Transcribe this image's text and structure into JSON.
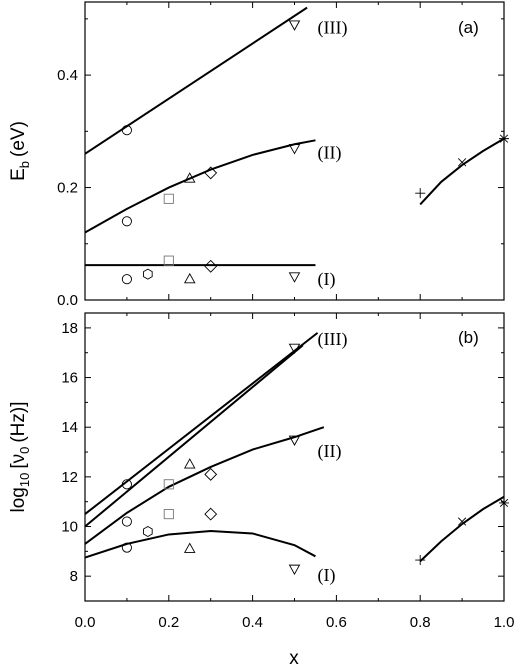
{
  "chart_data": [
    {
      "type": "scatter",
      "panel_label": "(a)",
      "ylabel_main": "E",
      "ylabel_sub": "b",
      "ylabel_unit": "(eV)",
      "xlim": [
        0.0,
        1.0
      ],
      "ylim": [
        0.0,
        0.53
      ],
      "yticks": [
        0.0,
        0.2,
        0.4
      ],
      "ytick_labels": [
        "0.0",
        "0.2",
        "0.4"
      ],
      "grid": false,
      "region_labels": [
        {
          "text": "(III)",
          "x": 0.555,
          "y": 0.485
        },
        {
          "text": "(II)",
          "x": 0.555,
          "y": 0.262
        },
        {
          "text": "(I)",
          "x": 0.555,
          "y": 0.037
        }
      ],
      "curves": [
        {
          "name": "(III)",
          "x": [
            0.0,
            0.53
          ],
          "y": [
            0.26,
            0.52
          ]
        },
        {
          "name": "(II)",
          "x": [
            0.0,
            0.1,
            0.2,
            0.3,
            0.4,
            0.5,
            0.55
          ],
          "y": [
            0.12,
            0.162,
            0.2,
            0.232,
            0.258,
            0.277,
            0.284
          ]
        },
        {
          "name": "(I)",
          "x": [
            0.0,
            0.55
          ],
          "y": [
            0.062,
            0.062
          ]
        },
        {
          "name": "x>=0.8",
          "x": [
            0.8,
            0.85,
            0.9,
            0.95,
            1.0
          ],
          "y": [
            0.17,
            0.21,
            0.24,
            0.265,
            0.287
          ]
        }
      ],
      "points": [
        {
          "marker": "circle",
          "x": 0.1,
          "y": 0.302
        },
        {
          "marker": "circle",
          "x": 0.1,
          "y": 0.14
        },
        {
          "marker": "circle",
          "x": 0.1,
          "y": 0.037
        },
        {
          "marker": "hexagon",
          "x": 0.15,
          "y": 0.046
        },
        {
          "marker": "square",
          "x": 0.2,
          "y": 0.18,
          "color": "gray"
        },
        {
          "marker": "square",
          "x": 0.2,
          "y": 0.07,
          "color": "gray"
        },
        {
          "marker": "triangle-up",
          "x": 0.25,
          "y": 0.216
        },
        {
          "marker": "triangle-up",
          "x": 0.25,
          "y": 0.037
        },
        {
          "marker": "diamond",
          "x": 0.3,
          "y": 0.226
        },
        {
          "marker": "diamond",
          "x": 0.3,
          "y": 0.06
        },
        {
          "marker": "triangle-down",
          "x": 0.5,
          "y": 0.49
        },
        {
          "marker": "triangle-down",
          "x": 0.5,
          "y": 0.27
        },
        {
          "marker": "triangle-down",
          "x": 0.5,
          "y": 0.042
        },
        {
          "marker": "plus",
          "x": 0.8,
          "y": 0.19
        },
        {
          "marker": "x",
          "x": 0.9,
          "y": 0.245
        },
        {
          "marker": "asterisk",
          "x": 1.0,
          "y": 0.287
        }
      ]
    },
    {
      "type": "scatter",
      "panel_label": "(b)",
      "ylabel_prefix": "log",
      "ylabel_prefix_sub": "10",
      "ylabel_bracket": "[ν",
      "ylabel_sub": "0",
      "ylabel_unit": "(Hz)]",
      "xlabel": "x",
      "xlim": [
        0.0,
        1.0
      ],
      "ylim": [
        7.0,
        18.6
      ],
      "xticks": [
        0.0,
        0.2,
        0.4,
        0.6,
        0.8,
        1.0
      ],
      "xtick_labels": [
        "0.0",
        "0.2",
        "0.4",
        "0.6",
        "0.8",
        "1.0"
      ],
      "yticks": [
        8,
        10,
        12,
        14,
        16,
        18
      ],
      "ytick_labels": [
        "8",
        "10",
        "12",
        "14",
        "16",
        "18"
      ],
      "grid": false,
      "region_labels": [
        {
          "text": "(III)",
          "x": 0.555,
          "y": 17.55
        },
        {
          "text": "(II)",
          "x": 0.555,
          "y": 13.05
        },
        {
          "text": "(I)",
          "x": 0.555,
          "y": 8.05
        }
      ],
      "curves": [
        {
          "name": "(III) upper",
          "x": [
            0.0,
            0.555
          ],
          "y": [
            10.5,
            17.8
          ]
        },
        {
          "name": "(III) lower",
          "x": [
            0.0,
            0.52
          ],
          "y": [
            10.0,
            17.3
          ]
        },
        {
          "name": "(II)",
          "x": [
            0.0,
            0.1,
            0.2,
            0.3,
            0.4,
            0.5,
            0.57
          ],
          "y": [
            9.3,
            10.55,
            11.6,
            12.4,
            13.1,
            13.6,
            14.0
          ]
        },
        {
          "name": "(I)",
          "x": [
            0.0,
            0.1,
            0.2,
            0.3,
            0.4,
            0.5,
            0.55
          ],
          "y": [
            8.75,
            9.3,
            9.68,
            9.82,
            9.72,
            9.25,
            8.8
          ]
        },
        {
          "name": "x>=0.8",
          "x": [
            0.8,
            0.85,
            0.9,
            0.95,
            1.0
          ],
          "y": [
            8.6,
            9.4,
            10.1,
            10.7,
            11.2
          ]
        }
      ],
      "points": [
        {
          "marker": "circle",
          "x": 0.1,
          "y": 11.7
        },
        {
          "marker": "circle",
          "x": 0.1,
          "y": 10.2
        },
        {
          "marker": "circle",
          "x": 0.1,
          "y": 9.15
        },
        {
          "marker": "hexagon",
          "x": 0.15,
          "y": 9.8
        },
        {
          "marker": "square",
          "x": 0.2,
          "y": 11.7,
          "color": "gray"
        },
        {
          "marker": "square",
          "x": 0.2,
          "y": 10.5,
          "color": "gray"
        },
        {
          "marker": "triangle-up",
          "x": 0.25,
          "y": 12.5
        },
        {
          "marker": "triangle-up",
          "x": 0.25,
          "y": 9.1
        },
        {
          "marker": "diamond",
          "x": 0.3,
          "y": 12.1
        },
        {
          "marker": "diamond",
          "x": 0.3,
          "y": 10.5
        },
        {
          "marker": "triangle-down",
          "x": 0.5,
          "y": 17.2
        },
        {
          "marker": "triangle-down",
          "x": 0.5,
          "y": 13.5
        },
        {
          "marker": "triangle-down",
          "x": 0.5,
          "y": 8.3
        },
        {
          "marker": "plus",
          "x": 0.8,
          "y": 8.65
        },
        {
          "marker": "x",
          "x": 0.9,
          "y": 10.2
        },
        {
          "marker": "asterisk",
          "x": 1.0,
          "y": 10.95
        }
      ]
    }
  ]
}
